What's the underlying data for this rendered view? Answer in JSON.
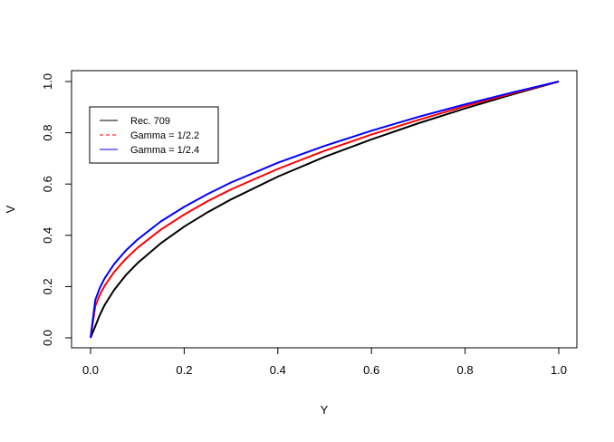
{
  "chart_data": {
    "type": "line",
    "title": "",
    "xlabel": "Y",
    "ylabel": "V",
    "xlim": [
      0,
      1
    ],
    "ylim": [
      0,
      1
    ],
    "xticks": [
      "0.0",
      "0.2",
      "0.4",
      "0.6",
      "0.8",
      "1.0"
    ],
    "yticks": [
      "0.0",
      "0.2",
      "0.4",
      "0.6",
      "0.8",
      "1.0"
    ],
    "grid": false,
    "legend_position": "top-left",
    "x": [
      0,
      0.01,
      0.02,
      0.03,
      0.05,
      0.075,
      0.1,
      0.15,
      0.2,
      0.25,
      0.3,
      0.4,
      0.5,
      0.6,
      0.7,
      0.8,
      0.9,
      1.0
    ],
    "series": [
      {
        "name": "Rec. 709",
        "color": "#000000",
        "legend_style": "solid",
        "values": [
          0,
          0.045,
          0.09,
          0.128,
          0.186,
          0.244,
          0.291,
          0.369,
          0.434,
          0.49,
          0.54,
          0.629,
          0.706,
          0.774,
          0.837,
          0.895,
          0.949,
          1.0
        ]
      },
      {
        "name": "Gamma = 1/2.2",
        "color": "#ff0000",
        "legend_style": "dashed",
        "values": [
          0,
          0.123,
          0.169,
          0.203,
          0.256,
          0.308,
          0.351,
          0.422,
          0.481,
          0.533,
          0.579,
          0.659,
          0.73,
          0.793,
          0.85,
          0.904,
          0.953,
          1.0
        ]
      },
      {
        "name": "Gamma = 1/2.4",
        "color": "#0000ff",
        "legend_style": "solid",
        "values": [
          0,
          0.147,
          0.196,
          0.232,
          0.287,
          0.34,
          0.383,
          0.454,
          0.511,
          0.561,
          0.606,
          0.683,
          0.749,
          0.808,
          0.862,
          0.911,
          0.957,
          1.0
        ]
      }
    ]
  }
}
